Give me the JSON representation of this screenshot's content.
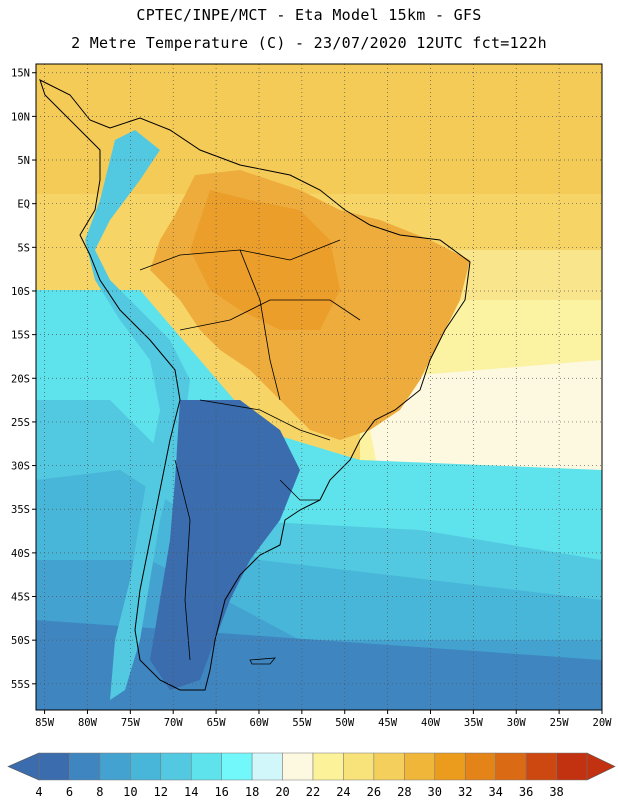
{
  "header": {
    "title": "CPTEC/INPE/MCT -  Eta Model 15km - GFS",
    "subtitle": "2 Metre Temperature (C) - 23/07/2020 12UTC fct=122h"
  },
  "map": {
    "lat_labels": [
      "15N",
      "10N",
      "5N",
      "EQ",
      "5S",
      "10S",
      "15S",
      "20S",
      "25S",
      "30S",
      "35S",
      "40S",
      "45S",
      "50S",
      "55S"
    ],
    "lon_labels": [
      "85W",
      "80W",
      "75W",
      "70W",
      "65W",
      "60W",
      "55W",
      "50W",
      "45W",
      "40W",
      "35W",
      "30W",
      "25W",
      "20W"
    ],
    "extent": {
      "lon": [
        -86,
        -20
      ],
      "lat": [
        -58,
        16
      ]
    },
    "grid": "dotted"
  },
  "colorbar": {
    "labels": [
      "4",
      "6",
      "8",
      "10",
      "12",
      "14",
      "16",
      "18",
      "20",
      "22",
      "24",
      "26",
      "28",
      "30",
      "32",
      "34",
      "36",
      "38"
    ],
    "colors": [
      "#3a6cae",
      "#3f86c1",
      "#43a2cf",
      "#48b6d8",
      "#52c9e0",
      "#5ee3ec",
      "#72f7fa",
      "#d2f7fb",
      "#fdf8e0",
      "#fbf29a",
      "#f8e27a",
      "#f4cf5c",
      "#efb63a",
      "#eb9c1c",
      "#e38318",
      "#db6a14",
      "#cd4810",
      "#c23210"
    ]
  }
}
